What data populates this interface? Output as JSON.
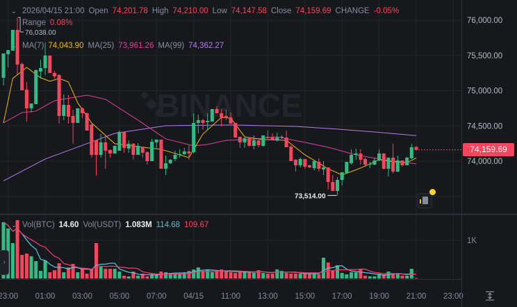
{
  "legend": {
    "datetime": "2026/04/15 21:00",
    "open_label": "Open",
    "open": "74,201.78",
    "high_label": "High",
    "high": "74,210.00",
    "low_label": "Low",
    "low": "74,147.58",
    "close_label": "Close",
    "close": "74,159.69",
    "change_label": "CHANGE",
    "change": "-0.05%",
    "range_label": "Range",
    "range": "0.08%",
    "ma7_label": "MA(7)",
    "ma7": "74,043.90",
    "ma25_label": "MA(25)",
    "ma25": "73,961.26",
    "ma99_label": "MA(99)",
    "ma99": "74,362.27"
  },
  "volume_legend": {
    "btc_label": "Vol(BTC)",
    "btc": "14.60",
    "usdt_label": "Vol(USDT)",
    "usdt": "1.083M",
    "ma1": "114.68",
    "ma2": "109.67"
  },
  "watermark": "BINANCE",
  "current_price": "74,159.69",
  "high_marker": "76,038.00",
  "low_marker": "73,514.00",
  "colors": {
    "up": "#2ebd85",
    "down": "#f6465d",
    "ma7": "#f0b90b",
    "ma25": "#e0409a",
    "ma99": "#b57cf0",
    "vol_ma1": "#4fc3d9",
    "vol_ma2": "#e0406a",
    "background": "#17181c"
  },
  "icons": [
    "chevron-down-icon",
    "collapse-arrow-icon",
    "notes-icon",
    "auto-fit-icon"
  ],
  "chart_data": {
    "type": "candlestick",
    "interval_ticks": [
      "23:00",
      "01:00",
      "03:00",
      "05:00",
      "07:00",
      "04/15",
      "11:00",
      "13:00",
      "15:00",
      "17:00",
      "19:00",
      "21:00",
      "23:00"
    ],
    "price_ticks": [
      "76,000.00",
      "75,500.00",
      "75,000.00",
      "74,500.00",
      "74,000.00"
    ],
    "price_tick_values": [
      76000,
      75500,
      75000,
      74500,
      74000
    ],
    "volume_ticks": [
      "1K"
    ],
    "volume_tick_values": [
      1000
    ],
    "ylim": [
      73300,
      76300
    ],
    "grid": true,
    "candles_ohlcv": [
      [
        75182,
        75530,
        75074,
        75527,
        1474
      ],
      [
        75517,
        75576,
        75330,
        75576,
        1310
      ],
      [
        75567,
        75862,
        75567,
        75862,
        928
      ],
      [
        75862,
        76038,
        75232,
        75370,
        1529
      ],
      [
        75379,
        75399,
        75005,
        75005,
        619
      ],
      [
        75015,
        75123,
        74562,
        74749,
        655
      ],
      [
        74749,
        74818,
        74690,
        74818,
        582
      ],
      [
        74808,
        75300,
        74808,
        75291,
        455
      ],
      [
        75271,
        75438,
        75172,
        75320,
        200
      ],
      [
        75320,
        75685,
        75222,
        75497,
        473
      ],
      [
        75497,
        75497,
        75251,
        75251,
        164
      ],
      [
        75251,
        75281,
        75172,
        75202,
        218
      ],
      [
        75222,
        75232,
        74532,
        74641,
        400
      ],
      [
        74641,
        74946,
        74581,
        74798,
        164
      ],
      [
        74798,
        74936,
        74532,
        74631,
        291
      ],
      [
        74641,
        74729,
        74247,
        74542,
        382
      ],
      [
        74542,
        74749,
        74542,
        74749,
        164
      ],
      [
        74749,
        74760,
        74611,
        74680,
        255
      ],
      [
        74680,
        74690,
        74434,
        74434,
        127
      ],
      [
        74522,
        74522,
        74050,
        74089,
        255
      ],
      [
        74296,
        74296,
        73794,
        74089,
        928
      ],
      [
        74089,
        74385,
        74050,
        74266,
        309
      ],
      [
        74266,
        74345,
        73892,
        74148,
        255
      ],
      [
        74158,
        74168,
        74050,
        74109,
        255
      ],
      [
        74109,
        74217,
        74100,
        74217,
        255
      ],
      [
        74148,
        74434,
        74148,
        74414,
        182
      ],
      [
        74414,
        74414,
        74119,
        74188,
        73
      ],
      [
        74178,
        74296,
        74119,
        74247,
        55
      ],
      [
        74247,
        74257,
        74020,
        74089,
        182
      ],
      [
        74089,
        74257,
        74089,
        74217,
        73
      ],
      [
        74207,
        74207,
        74050,
        74119,
        127
      ],
      [
        74128,
        74138,
        73951,
        74000,
        55
      ],
      [
        74000,
        74316,
        74000,
        74276,
        91
      ],
      [
        74266,
        74306,
        74188,
        74306,
        109
      ],
      [
        74306,
        74306,
        73892,
        73892,
        182
      ],
      [
        73892,
        74080,
        73803,
        73970,
        164
      ],
      [
        73970,
        74030,
        73960,
        74020,
        127
      ],
      [
        74030,
        74148,
        74000,
        74089,
        127
      ],
      [
        74089,
        74168,
        74050,
        74099,
        127
      ],
      [
        74099,
        74188,
        74089,
        74138,
        164
      ],
      [
        74138,
        74227,
        74020,
        74109,
        200
      ],
      [
        74128,
        74680,
        74109,
        74542,
        237
      ],
      [
        74542,
        74660,
        74394,
        74581,
        291
      ],
      [
        74581,
        74600,
        74444,
        74542,
        200
      ],
      [
        74552,
        74680,
        74444,
        74571,
        218
      ],
      [
        74562,
        74739,
        74562,
        74739,
        164
      ],
      [
        74739,
        74779,
        74680,
        74680,
        182
      ],
      [
        74680,
        74739,
        74493,
        74620,
        237
      ],
      [
        74641,
        74729,
        74581,
        74611,
        182
      ],
      [
        74621,
        74690,
        74532,
        74532,
        164
      ],
      [
        74542,
        74542,
        74335,
        74335,
        146
      ],
      [
        74345,
        74345,
        74188,
        74266,
        164
      ],
      [
        74266,
        74345,
        74188,
        74325,
        200
      ],
      [
        74325,
        74335,
        74207,
        74217,
        164
      ],
      [
        74217,
        74365,
        74168,
        74296,
        146
      ],
      [
        74296,
        74296,
        74197,
        74227,
        218
      ],
      [
        74217,
        74365,
        74207,
        74365,
        146
      ],
      [
        74345,
        74434,
        74316,
        74335,
        127
      ],
      [
        74345,
        74394,
        74296,
        74306,
        127
      ],
      [
        74306,
        74404,
        74276,
        74335,
        237
      ],
      [
        74335,
        74365,
        74316,
        74345,
        200
      ],
      [
        74335,
        74434,
        74197,
        74197,
        146
      ],
      [
        74207,
        74227,
        74000,
        74000,
        127
      ],
      [
        74020,
        74030,
        73852,
        73941,
        127
      ],
      [
        73941,
        74050,
        73911,
        74030,
        127
      ],
      [
        74030,
        74030,
        73892,
        73921,
        127
      ],
      [
        73941,
        73951,
        73901,
        73911,
        146
      ],
      [
        73901,
        74020,
        73872,
        74000,
        127
      ],
      [
        73990,
        74040,
        73852,
        73892,
        109
      ],
      [
        73882,
        74000,
        73803,
        73911,
        546
      ],
      [
        73911,
        73911,
        73597,
        73705,
        419
      ],
      [
        73705,
        73803,
        73577,
        73577,
        218
      ],
      [
        73577,
        73774,
        73514,
        73734,
        346
      ],
      [
        73734,
        73843,
        73656,
        73843,
        146
      ],
      [
        73833,
        73990,
        73833,
        73990,
        109
      ],
      [
        73970,
        74168,
        73951,
        74089,
        164
      ],
      [
        74089,
        74178,
        74020,
        74109,
        164
      ],
      [
        74109,
        74168,
        73951,
        74020,
        255
      ],
      [
        74030,
        74050,
        73921,
        73951,
        73
      ],
      [
        73951,
        73990,
        73901,
        73961,
        55
      ],
      [
        73951,
        74050,
        73941,
        74010,
        55
      ],
      [
        74010,
        74168,
        74000,
        74109,
        127
      ],
      [
        74109,
        74109,
        73882,
        73892,
        109
      ],
      [
        73892,
        74050,
        73783,
        74050,
        182
      ],
      [
        74050,
        74247,
        73823,
        73852,
        109
      ],
      [
        73852,
        74080,
        73843,
        74010,
        127
      ],
      [
        74010,
        74010,
        73921,
        73941,
        73
      ],
      [
        73941,
        74060,
        73941,
        74050,
        73
      ],
      [
        74040,
        74247,
        74030,
        74197,
        255
      ],
      [
        74201.78,
        74210,
        74147.58,
        74159.69,
        14.6
      ]
    ],
    "ma7_points": [
      [
        0,
        74542
      ],
      [
        2,
        75173
      ],
      [
        5,
        75330
      ],
      [
        8,
        75182
      ],
      [
        10,
        75133
      ],
      [
        12,
        75173
      ],
      [
        14,
        75123
      ],
      [
        16,
        74828
      ],
      [
        19,
        74542
      ],
      [
        24,
        74247
      ],
      [
        30,
        74197
      ],
      [
        34,
        74168
      ],
      [
        40,
        74050
      ],
      [
        43,
        74385
      ],
      [
        47,
        74621
      ],
      [
        49,
        74611
      ],
      [
        52,
        74345
      ],
      [
        56,
        74306
      ],
      [
        61,
        74296
      ],
      [
        65,
        74089
      ],
      [
        70,
        73892
      ],
      [
        73,
        73803
      ],
      [
        77,
        73902
      ],
      [
        81,
        74020
      ],
      [
        84,
        73990
      ],
      [
        87,
        73980
      ],
      [
        89,
        74043.9
      ]
    ],
    "ma25_points": [
      [
        0,
        74542
      ],
      [
        4,
        74690
      ],
      [
        7,
        74710
      ],
      [
        11,
        74857
      ],
      [
        18,
        74936
      ],
      [
        22,
        74877
      ],
      [
        29,
        74582
      ],
      [
        35,
        74316
      ],
      [
        41,
        74217
      ],
      [
        44,
        74237
      ],
      [
        48,
        74296
      ],
      [
        53,
        74306
      ],
      [
        59,
        74345
      ],
      [
        65,
        74266
      ],
      [
        70,
        74197
      ],
      [
        76,
        74089
      ],
      [
        82,
        74020
      ],
      [
        89,
        73961.26
      ]
    ],
    "ma99_points": [
      [
        0,
        73720
      ],
      [
        9,
        74030
      ],
      [
        24,
        74394
      ],
      [
        35,
        74503
      ],
      [
        49,
        74513
      ],
      [
        63,
        74493
      ],
      [
        72,
        74454
      ],
      [
        80,
        74414
      ],
      [
        89,
        74362.27
      ]
    ]
  }
}
